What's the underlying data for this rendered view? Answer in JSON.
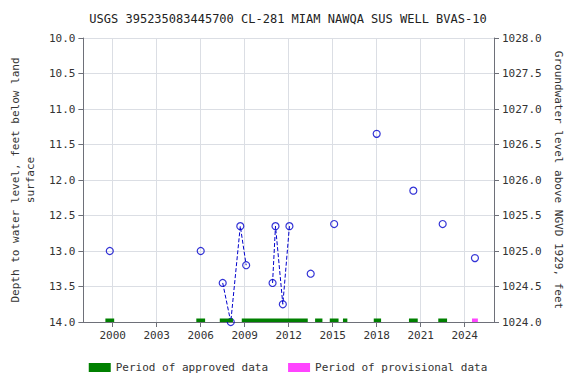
{
  "chart_data": {
    "type": "scatter",
    "title": "USGS 395235083445700 CL-281 MIAM NAWQA SUS WELL BVAS-10",
    "ylabel": "Depth to water level, feet below land\nsurface",
    "y2label": "Groundwater level above NGVD 1929, feet",
    "xlim": [
      1998.0,
      2026.0
    ],
    "xticks": [
      2000,
      2003,
      2006,
      2009,
      2012,
      2015,
      2018,
      2021,
      2024
    ],
    "ylim": [
      14.0,
      10.0
    ],
    "yticks": [
      {
        "value": 10.0,
        "label": "10.0"
      },
      10.5,
      {
        "value": 11.0,
        "label": "11.0"
      },
      11.5,
      {
        "value": 12.0,
        "label": "12.0"
      },
      12.5,
      {
        "value": 13.0,
        "label": "13.0"
      },
      13.5,
      {
        "value": 14.0,
        "label": "14.0"
      }
    ],
    "y2lim": [
      1024.0,
      1028.0
    ],
    "y2ticks": [
      {
        "value": 1024.0,
        "label": "1024.0"
      },
      1024.5,
      {
        "value": 1025.0,
        "label": "1025.0"
      },
      1025.5,
      {
        "value": 1026.0,
        "label": "1026.0"
      },
      1026.5,
      {
        "value": 1027.0,
        "label": "1027.0"
      },
      1027.5,
      {
        "value": 1028.0,
        "label": "1028.0"
      }
    ],
    "grid": true,
    "legend": "bottom",
    "series": [
      {
        "type": "line",
        "line_style": "dashed",
        "color": "#0000cc",
        "x": [
          2007.5,
          2008.05,
          2008.7,
          2009.1
        ],
        "values": [
          13.45,
          14.0,
          12.65,
          13.2
        ]
      },
      {
        "type": "line",
        "line_style": "dashed",
        "color": "#0000cc",
        "x": [
          2010.9,
          2011.1,
          2011.6,
          2012.05
        ],
        "values": [
          13.45,
          12.65,
          13.75,
          12.65
        ]
      },
      {
        "type": "scatter",
        "marker": "open-circle",
        "color": "#0000cc",
        "x": [
          1999.8,
          2006.0,
          2007.5,
          2008.05,
          2008.7,
          2009.1,
          2010.9,
          2011.1,
          2011.6,
          2012.05,
          2013.5,
          2015.1,
          2018.0,
          2020.5,
          2022.5,
          2024.7
        ],
        "values": [
          13.0,
          13.0,
          13.45,
          14.0,
          12.65,
          13.2,
          13.45,
          12.65,
          13.75,
          12.65,
          13.32,
          12.62,
          11.35,
          12.15,
          12.62,
          13.1
        ]
      },
      {
        "type": "span",
        "name": "Period of approved data",
        "color": "#008000",
        "y": 14.0,
        "periods": [
          [
            1999.5,
            2000.1
          ],
          [
            2005.7,
            2006.3
          ],
          [
            2007.3,
            2008.2
          ],
          [
            2008.8,
            2013.3
          ],
          [
            2013.8,
            2014.3
          ],
          [
            2014.8,
            2015.4
          ],
          [
            2015.7,
            2016.0
          ],
          [
            2017.8,
            2018.3
          ],
          [
            2020.2,
            2020.8
          ],
          [
            2022.2,
            2022.8
          ]
        ]
      },
      {
        "type": "span",
        "name": "Period of provisional data",
        "color": "#ff44ff",
        "y": 14.0,
        "periods": [
          [
            2024.5,
            2024.9
          ]
        ]
      }
    ]
  }
}
